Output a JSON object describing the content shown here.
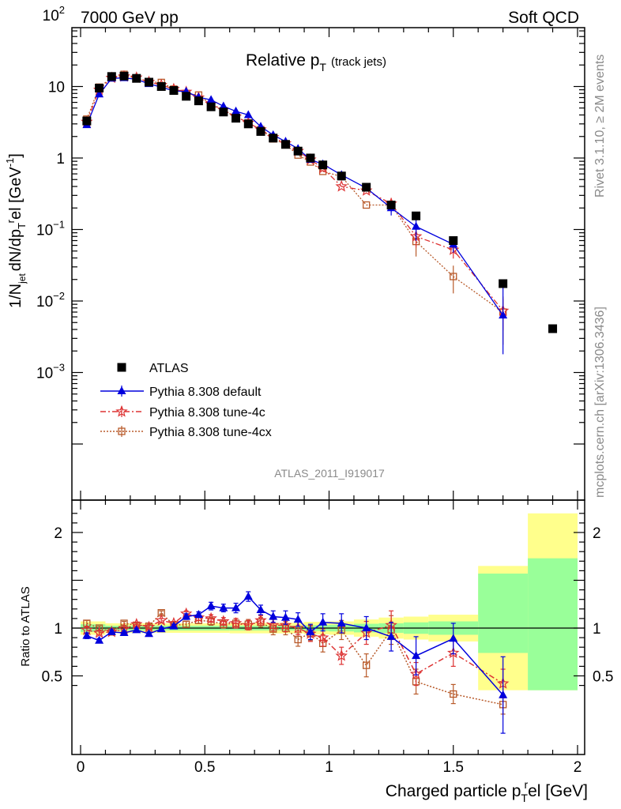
{
  "header": {
    "left": "7000 GeV pp",
    "right": "Soft QCD"
  },
  "side_labels": {
    "rivet": "Rivet 3.1.10, ≥ 2M events",
    "mcplots": "mcplots.cern.ch [arXiv:1306.3436]"
  },
  "plot": {
    "title_main": "Relative p",
    "title_sub": "T",
    "title_tail": "(track jets)",
    "analysis_id": "ATLAS_2011_I919017",
    "ylabel_prefix": "1/N",
    "ylabel_jet": "jet",
    "ylabel_mid": "dN/dp",
    "ylabel_T": "T",
    "ylabel_r": "r",
    "ylabel_el": "el [GeV",
    "ylabel_exp": "-1",
    "ylabel_end": "]",
    "ratio_ylabel": "Ratio to ATLAS",
    "xlabel_main": "Charged particle p",
    "xlabel_T": "T",
    "xlabel_r": "r",
    "xlabel_tail": "el [GeV]",
    "top_yticks": [
      {
        "v": 0.001,
        "base": "10",
        "exp": "−3"
      },
      {
        "v": 0.01,
        "base": "10",
        "exp": "−2"
      },
      {
        "v": 0.1,
        "base": "10",
        "exp": "−1"
      },
      {
        "v": 1,
        "base": "1",
        "exp": ""
      },
      {
        "v": 10,
        "base": "10",
        "exp": ""
      },
      {
        "v": 100,
        "base": "10",
        "exp": "2"
      }
    ],
    "ratio_yticks": [
      {
        "v": 0.5,
        "label": "0.5"
      },
      {
        "v": 1,
        "label": "1"
      },
      {
        "v": 2,
        "label": "2"
      }
    ],
    "xticks": [
      {
        "v": 0,
        "label": "0"
      },
      {
        "v": 0.5,
        "label": "0.5"
      },
      {
        "v": 1,
        "label": "1"
      },
      {
        "v": 1.5,
        "label": "1.5"
      },
      {
        "v": 2,
        "label": "2"
      }
    ]
  },
  "chart_data": {
    "type": "scatter",
    "x_range": [
      -0.05,
      2.05
    ],
    "y_range_top": [
      0.00015,
      700
    ],
    "y_scale_top": "log",
    "y_range_ratio": [
      0.35,
      2.3
    ],
    "legend_position": "lower-left",
    "x": [
      0.025,
      0.075,
      0.125,
      0.175,
      0.225,
      0.275,
      0.325,
      0.375,
      0.425,
      0.475,
      0.525,
      0.575,
      0.625,
      0.675,
      0.725,
      0.775,
      0.825,
      0.875,
      0.925,
      0.975,
      1.05,
      1.15,
      1.25,
      1.35,
      1.5,
      1.7,
      1.9
    ],
    "bands": [
      {
        "x0": 0.0,
        "x1": 0.1,
        "y_lo": 0.93,
        "y_hi": 1.07,
        "g_lo": 0.96,
        "g_hi": 1.04
      },
      {
        "x0": 0.1,
        "x1": 0.3,
        "y_lo": 0.95,
        "y_hi": 1.05,
        "g_lo": 0.975,
        "g_hi": 1.025
      },
      {
        "x0": 0.3,
        "x1": 0.6,
        "y_lo": 0.95,
        "y_hi": 1.05,
        "g_lo": 0.975,
        "g_hi": 1.025
      },
      {
        "x0": 0.6,
        "x1": 0.9,
        "y_lo": 0.945,
        "y_hi": 1.055,
        "g_lo": 0.975,
        "g_hi": 1.025
      },
      {
        "x0": 0.9,
        "x1": 1.0,
        "y_lo": 0.935,
        "y_hi": 1.065,
        "g_lo": 0.97,
        "g_hi": 1.03
      },
      {
        "x0": 1.0,
        "x1": 1.1,
        "y_lo": 0.93,
        "y_hi": 1.07,
        "g_lo": 0.965,
        "g_hi": 1.035
      },
      {
        "x0": 1.1,
        "x1": 1.2,
        "y_lo": 0.91,
        "y_hi": 1.09,
        "g_lo": 0.955,
        "g_hi": 1.045
      },
      {
        "x0": 1.2,
        "x1": 1.3,
        "y_lo": 0.89,
        "y_hi": 1.11,
        "g_lo": 0.95,
        "g_hi": 1.05
      },
      {
        "x0": 1.3,
        "x1": 1.4,
        "y_lo": 0.88,
        "y_hi": 1.12,
        "g_lo": 0.94,
        "g_hi": 1.06
      },
      {
        "x0": 1.4,
        "x1": 1.6,
        "y_lo": 0.86,
        "y_hi": 1.14,
        "g_lo": 0.93,
        "g_hi": 1.07
      },
      {
        "x0": 1.6,
        "x1": 1.8,
        "y_lo": 0.35,
        "y_hi": 1.65,
        "g_lo": 0.74,
        "g_hi": 1.57
      },
      {
        "x0": 1.8,
        "x1": 2.0,
        "y_lo": 0.35,
        "y_hi": 2.2,
        "g_lo": 0.35,
        "g_hi": 1.73
      }
    ],
    "series": [
      {
        "name": "ATLAS",
        "color": "#000000",
        "marker": "square",
        "y": [
          3.3,
          9.5,
          13.8,
          14.0,
          13.0,
          11.5,
          10.0,
          8.8,
          7.3,
          6.3,
          5.2,
          4.4,
          3.6,
          3.0,
          2.35,
          1.9,
          1.55,
          1.25,
          1.0,
          0.8,
          0.56,
          0.39,
          0.22,
          0.155,
          0.07,
          0.0175,
          0.0041
        ],
        "ratio": []
      },
      {
        "name": "Pythia 8.308 default",
        "color": "#0000dd",
        "marker": "triangle",
        "line": "solid",
        "y": [
          2.9,
          7.8,
          13.0,
          13.2,
          12.6,
          10.9,
          9.8,
          8.7,
          8.5,
          7.1,
          6.5,
          5.3,
          4.5,
          4.0,
          2.75,
          2.1,
          1.7,
          1.35,
          0.95,
          0.82,
          0.58,
          0.38,
          0.2,
          0.11,
          0.062,
          0.0063
        ],
        "ratio": [
          0.92,
          0.87,
          0.96,
          0.95,
          0.98,
          0.94,
          0.99,
          1.02,
          1.12,
          1.14,
          1.23,
          1.21,
          1.21,
          1.33,
          1.19,
          1.12,
          1.11,
          1.09,
          0.96,
          1.06,
          1.05,
          1.0,
          0.91,
          0.71,
          0.89,
          0.3
        ],
        "ratio_err": [
          0.03,
          0.02,
          0.02,
          0.02,
          0.02,
          0.02,
          0.02,
          0.02,
          0.03,
          0.03,
          0.04,
          0.04,
          0.05,
          0.05,
          0.05,
          0.06,
          0.07,
          0.07,
          0.08,
          0.09,
          0.1,
          0.12,
          0.15,
          0.2,
          0.16,
          0.4
        ]
      },
      {
        "name": "Pythia 8.308 tune-4c",
        "color": "#dd3333",
        "marker": "star",
        "line": "dashdot",
        "y": [
          3.2,
          9.0,
          13.2,
          13.8,
          13.3,
          11.6,
          10.5,
          9.2,
          8.4,
          7.0,
          5.7,
          4.7,
          3.8,
          3.1,
          2.5,
          1.95,
          1.6,
          1.25,
          0.95,
          0.72,
          0.4,
          0.35,
          0.23,
          0.08,
          0.052,
          0.0073
        ],
        "ratio": [
          0.98,
          0.95,
          0.96,
          0.99,
          1.04,
          1.01,
          1.08,
          1.05,
          1.15,
          1.11,
          1.1,
          1.07,
          1.05,
          1.03,
          1.08,
          1.03,
          1.03,
          1.0,
          0.94,
          0.9,
          0.71,
          0.95,
          1.03,
          0.52,
          0.74,
          0.42
        ],
        "ratio_err": [
          0.03,
          0.02,
          0.02,
          0.02,
          0.02,
          0.02,
          0.02,
          0.02,
          0.03,
          0.03,
          0.04,
          0.04,
          0.05,
          0.05,
          0.05,
          0.06,
          0.07,
          0.07,
          0.08,
          0.09,
          0.09,
          0.12,
          0.15,
          0.12,
          0.14,
          0.15
        ]
      },
      {
        "name": "Pythia 8.308 tune-4cx",
        "color": "#b85a2a",
        "marker": "open-square",
        "line": "dotted",
        "y": [
          3.5,
          9.8,
          13.2,
          14.8,
          13.0,
          11.6,
          11.4,
          9.2,
          8.0,
          7.6,
          5.6,
          4.6,
          3.8,
          3.1,
          2.5,
          1.85,
          1.55,
          1.1,
          0.88,
          0.65,
          0.55,
          0.22,
          0.22,
          0.068,
          0.022,
          0.007
        ],
        "ratio": [
          1.05,
          1.0,
          0.96,
          1.05,
          1.03,
          1.02,
          1.16,
          1.03,
          1.04,
          1.08,
          1.07,
          1.04,
          1.05,
          1.04,
          1.06,
          0.99,
          1.0,
          0.88,
          0.95,
          0.84,
          0.98,
          0.61,
          0.98,
          0.44,
          0.31,
          0.2
        ],
        "ratio_err": [
          0.03,
          0.02,
          0.02,
          0.02,
          0.02,
          0.02,
          0.02,
          0.02,
          0.03,
          0.03,
          0.04,
          0.04,
          0.05,
          0.05,
          0.05,
          0.06,
          0.07,
          0.07,
          0.08,
          0.09,
          0.1,
          0.12,
          0.15,
          0.13,
          0.1,
          0.1
        ]
      }
    ]
  }
}
